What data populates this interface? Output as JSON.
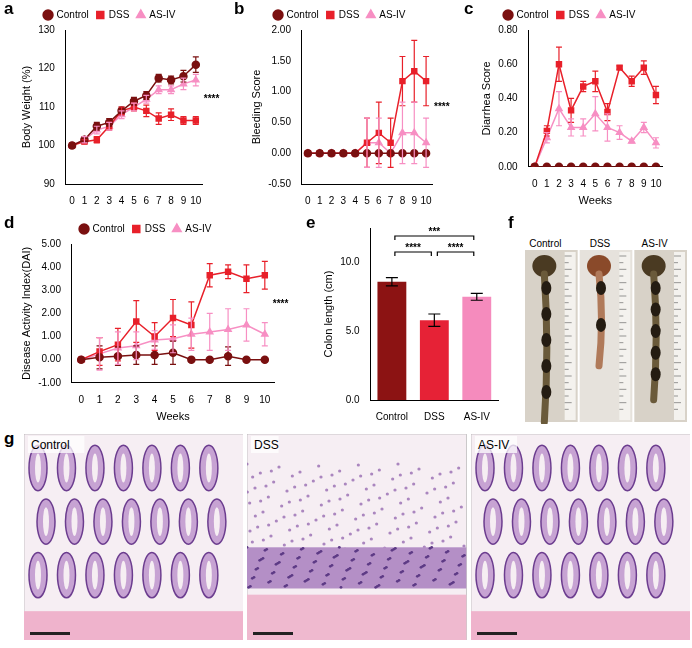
{
  "chart_data": [
    {
      "panel": "a",
      "type": "line",
      "y_label": "Body Weight (%)",
      "x": [
        0,
        1,
        2,
        3,
        4,
        5,
        6,
        7,
        8,
        9,
        10
      ],
      "xlim": [
        -0.5,
        10.5
      ],
      "xticks": [
        0,
        1,
        2,
        3,
        4,
        5,
        6,
        7,
        8,
        9,
        10
      ],
      "ylim": [
        90,
        130
      ],
      "yticks": [
        90,
        100,
        110,
        120,
        130
      ],
      "grid": false,
      "legend": "top",
      "series": [
        {
          "name": "Control",
          "color": "#7a1010",
          "marker": "circle",
          "values": [
            100,
            101.5,
            105,
            106,
            109,
            111.5,
            113,
            117.5,
            117,
            118,
            121
          ],
          "errors": [
            0,
            0.8,
            1,
            1,
            1,
            1,
            1,
            1,
            1,
            1.5,
            2
          ]
        },
        {
          "name": "DSS",
          "color": "#e8202a",
          "marker": "square",
          "values": [
            100,
            101,
            101.5,
            105,
            109,
            110,
            109,
            107,
            108,
            106.5,
            106.5
          ],
          "errors": [
            0,
            0.5,
            0.8,
            1,
            1,
            1,
            1.5,
            1.5,
            1.5,
            1,
            1
          ]
        },
        {
          "name": "AS-IV",
          "color": "#f78fc3",
          "marker": "triangle",
          "values": [
            100,
            101.5,
            104,
            105,
            108,
            110,
            112,
            114.5,
            114.5,
            116,
            117
          ],
          "errors": [
            0,
            0.8,
            1,
            1,
            1,
            1,
            1,
            1,
            1,
            1.5,
            1.5
          ]
        }
      ],
      "annotations": [
        {
          "text": "****",
          "x": 10,
          "y": 112
        }
      ]
    },
    {
      "panel": "b",
      "type": "line",
      "y_label": "Bleeding Score",
      "x": [
        0,
        1,
        2,
        3,
        4,
        5,
        6,
        7,
        8,
        9,
        10
      ],
      "xlim": [
        -0.5,
        10.5
      ],
      "xticks": [
        0,
        1,
        2,
        3,
        4,
        5,
        6,
        7,
        8,
        9,
        10
      ],
      "ylim": [
        -0.5,
        2.0
      ],
      "yticks": [
        {
          "value": -0.5,
          "label": "-0.50"
        },
        {
          "value": 0,
          "label": "0.00"
        },
        {
          "value": 0.5,
          "label": "0.50"
        },
        {
          "value": 1,
          "label": "1.00"
        },
        {
          "value": 1.5,
          "label": "1.50"
        },
        {
          "value": 2,
          "label": "2.00"
        }
      ],
      "grid": false,
      "legend": "top",
      "series": [
        {
          "name": "Control",
          "color": "#7a1010",
          "marker": "circle",
          "values": [
            0,
            0,
            0,
            0,
            0,
            0,
            0,
            0,
            0,
            0,
            0
          ],
          "errors": [
            0,
            0,
            0,
            0,
            0,
            0,
            0,
            0,
            0,
            0,
            0
          ]
        },
        {
          "name": "DSS",
          "color": "#e8202a",
          "marker": "square",
          "values": [
            0,
            0,
            0,
            0,
            0,
            0.17,
            0.33,
            0.17,
            1.17,
            1.33,
            1.17
          ],
          "errors": [
            0,
            0,
            0,
            0,
            0,
            0.4,
            0.5,
            0.4,
            0.4,
            0.5,
            0.4
          ]
        },
        {
          "name": "AS-IV",
          "color": "#f78fc3",
          "marker": "triangle",
          "values": [
            0,
            0,
            0,
            0,
            0,
            0.17,
            0.17,
            0,
            0.33,
            0.33,
            0.17
          ],
          "errors": [
            0,
            0,
            0,
            0,
            0,
            0.4,
            0.4,
            0,
            0.5,
            0.5,
            0.4
          ]
        }
      ],
      "annotations": [
        {
          "text": "****",
          "x": 10,
          "y": 0.75
        }
      ]
    },
    {
      "panel": "c",
      "type": "line",
      "y_label": "Diarrhea Score",
      "x_label": "Weeks",
      "x": [
        0,
        1,
        2,
        3,
        4,
        5,
        6,
        7,
        8,
        9,
        10
      ],
      "xlim": [
        -0.5,
        10.5
      ],
      "xticks": [
        0,
        1,
        2,
        3,
        4,
        5,
        6,
        7,
        8,
        9,
        10
      ],
      "ylim": [
        0,
        0.8
      ],
      "yticks": [
        {
          "value": 0,
          "label": "0.00"
        },
        {
          "value": 0.2,
          "label": "0.20"
        },
        {
          "value": 0.4,
          "label": "0.40"
        },
        {
          "value": 0.6,
          "label": "0.60"
        },
        {
          "value": 0.8,
          "label": "0.80"
        }
      ],
      "grid": false,
      "legend": "top",
      "series": [
        {
          "name": "Control",
          "color": "#7a1010",
          "marker": "circle",
          "values": [
            0,
            0,
            0,
            0,
            0,
            0,
            0,
            0,
            0,
            0,
            0
          ],
          "errors": [
            0,
            0,
            0,
            0,
            0,
            0,
            0,
            0,
            0,
            0,
            0
          ]
        },
        {
          "name": "DSS",
          "color": "#e8202a",
          "marker": "square",
          "values": [
            0,
            0.21,
            0.6,
            0.33,
            0.47,
            0.5,
            0.32,
            0.58,
            0.5,
            0.58,
            0.42
          ],
          "errors": [
            0,
            0.03,
            0.1,
            0.07,
            0.03,
            0.06,
            0.05,
            0.01,
            0.03,
            0.04,
            0.05
          ]
        },
        {
          "name": "AS-IV",
          "color": "#f78fc3",
          "marker": "triangle",
          "values": [
            0,
            0.17,
            0.34,
            0.23,
            0.23,
            0.31,
            0.23,
            0.2,
            0.15,
            0.23,
            0.14
          ],
          "errors": [
            0,
            0.03,
            0.1,
            0.05,
            0.05,
            0.1,
            0.08,
            0.04,
            0.01,
            0.03,
            0.03
          ]
        }
      ]
    },
    {
      "panel": "d",
      "type": "line",
      "y_label": "Disease Activity Index(DAI)",
      "x_label": "Weeks",
      "x": [
        0,
        1,
        2,
        3,
        4,
        5,
        6,
        7,
        8,
        9,
        10
      ],
      "xlim": [
        -0.5,
        10.5
      ],
      "xticks": [
        0,
        1,
        2,
        3,
        4,
        5,
        6,
        7,
        8,
        9,
        10
      ],
      "ylim": [
        -1,
        5
      ],
      "yticks": [
        {
          "value": -1,
          "label": "-1.00"
        },
        {
          "value": 0,
          "label": "0.00"
        },
        {
          "value": 1,
          "label": "1.00"
        },
        {
          "value": 2,
          "label": "2.00"
        },
        {
          "value": 3,
          "label": "3.00"
        },
        {
          "value": 4,
          "label": "4.00"
        },
        {
          "value": 5,
          "label": "5.00"
        }
      ],
      "grid": false,
      "legend": "top",
      "series": [
        {
          "name": "Control",
          "color": "#7a1010",
          "marker": "circle",
          "values": [
            0,
            0.1,
            0.15,
            0.2,
            0.2,
            0.3,
            0,
            0,
            0.15,
            0,
            0
          ],
          "errors": [
            0,
            0.5,
            0.4,
            0.4,
            0.4,
            0.5,
            0,
            0,
            0.4,
            0,
            0
          ]
        },
        {
          "name": "DSS",
          "color": "#e8202a",
          "marker": "square",
          "values": [
            0,
            0.35,
            0.65,
            1.65,
            1.0,
            1.8,
            1.5,
            3.65,
            3.8,
            3.5,
            3.65
          ],
          "errors": [
            0,
            0.6,
            0.7,
            0.9,
            0.6,
            0.8,
            1.0,
            0.5,
            0.3,
            0.6,
            0.6
          ]
        },
        {
          "name": "AS-IV",
          "color": "#f78fc3",
          "marker": "triangle",
          "values": [
            0,
            0.25,
            0.5,
            0.6,
            0.85,
            0.9,
            1.1,
            1.2,
            1.3,
            1.5,
            1.1
          ],
          "errors": [
            0,
            0.7,
            0.7,
            0.6,
            0.4,
            0.6,
            0.7,
            0.8,
            0.9,
            0.7,
            0.5
          ]
        }
      ],
      "annotations": [
        {
          "text": "****",
          "x": 10,
          "y": 2.4
        }
      ]
    },
    {
      "panel": "e",
      "type": "bar",
      "y_label": "Colon length (cm)",
      "categories": [
        "Control",
        "DSS",
        "AS-IV"
      ],
      "values": [
        8.6,
        5.8,
        7.5
      ],
      "errors": [
        0.3,
        0.45,
        0.25
      ],
      "colors": [
        "#8c1313",
        "#e62236",
        "#f58bbd"
      ],
      "ylim": [
        0,
        12.5
      ],
      "yticks": [
        {
          "value": 0,
          "label": "0.0"
        },
        {
          "value": 5,
          "label": "5.0"
        },
        {
          "value": 10,
          "label": "10.0"
        }
      ],
      "grid": false,
      "significance": [
        {
          "from": "Control",
          "to": "AS-IV",
          "label": "***"
        },
        {
          "from": "Control",
          "to": "DSS",
          "label": "****"
        },
        {
          "from": "DSS",
          "to": "AS-IV",
          "label": "****"
        }
      ]
    }
  ],
  "images": [
    {
      "panel": "f",
      "type": "photo",
      "labels": [
        "Control",
        "DSS",
        "AS-IV"
      ]
    },
    {
      "panel": "g",
      "type": "micrograph",
      "labels": [
        "Control",
        "DSS",
        "AS-IV"
      ]
    }
  ]
}
